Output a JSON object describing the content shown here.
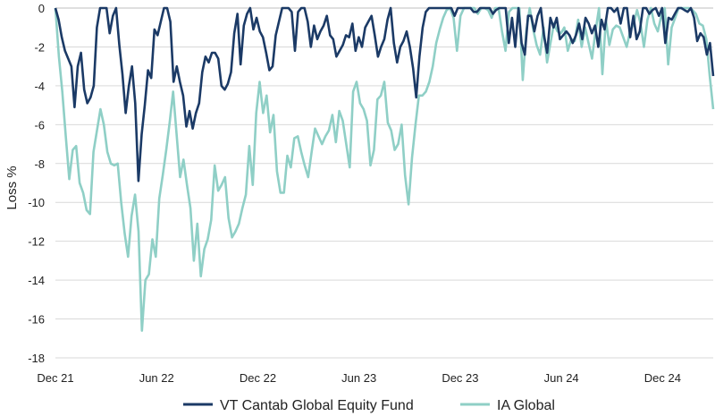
{
  "chart_data": {
    "type": "line",
    "title": "",
    "xlabel": "",
    "ylabel": "Loss %",
    "ylim": [
      -18,
      0
    ],
    "yticks": [
      "0",
      "-2",
      "-4",
      "-6",
      "-8",
      "-10",
      "-12",
      "-14",
      "-16",
      "-18"
    ],
    "xticks": [
      "Dec 21",
      "Jun 22",
      "Dec 22",
      "Jun 23",
      "Dec 23",
      "Jun 24",
      "Dec 24"
    ],
    "x_range": [
      "Dec 21",
      "Mar 25"
    ],
    "grid": "horizontal",
    "legend_position": "bottom",
    "series": [
      {
        "name": "VT Cantab Global Equity Fund",
        "color": "#1b3a66",
        "values": [
          0,
          -0.6,
          -1.5,
          -2.2,
          -2.6,
          -3.0,
          -5.1,
          -3.0,
          -2.3,
          -4.2,
          -4.9,
          -4.6,
          -4.0,
          -1.0,
          0,
          0,
          0,
          -1.3,
          -0.4,
          0,
          -1.9,
          -3.4,
          -5.4,
          -4.0,
          -3.0,
          -4.9,
          -8.9,
          -6.5,
          -5.0,
          -3.2,
          -3.6,
          -1.1,
          -1.4,
          -0.7,
          0,
          0,
          -0.7,
          -3.8,
          -3.0,
          -3.8,
          -4.5,
          -6.1,
          -5.3,
          -6.2,
          -5.4,
          -4.9,
          -3.3,
          -2.5,
          -2.8,
          -2.3,
          -2.3,
          -2.6,
          -4.0,
          -4.2,
          -3.9,
          -3.3,
          -1.3,
          -0.3,
          -2.9,
          -0.9,
          -0.3,
          0,
          -1.1,
          -0.5,
          -1.2,
          -1.5,
          -2.3,
          -3.2,
          -3.0,
          -1.4,
          -0.7,
          0,
          0,
          0,
          -0.2,
          -2.2,
          -0.2,
          0,
          0,
          -0.7,
          -2.0,
          -0.9,
          -1.6,
          -1.2,
          -0.9,
          -0.4,
          -1.4,
          -1.6,
          -2.5,
          -2.2,
          -1.9,
          -1.4,
          -1.5,
          -0.8,
          -2.2,
          -1.5,
          -2.0,
          -1.0,
          -0.7,
          -0.4,
          -1.4,
          -2.5,
          -2.0,
          -1.6,
          -0.6,
          0,
          -1.8,
          -2.8,
          -2.0,
          -1.7,
          -1.2,
          -2.0,
          -3.1,
          -4.6,
          -2.5,
          -1.0,
          -0.2,
          0,
          0,
          0,
          0,
          0,
          0,
          0,
          0,
          -0.4,
          0,
          0,
          0,
          0,
          0,
          -0.2,
          -0.2,
          0,
          0,
          0,
          0,
          -0.3,
          -0.1,
          0,
          0,
          0,
          -1.8,
          -0.5,
          -2.0,
          0,
          -1.8,
          -2.4,
          -0.4,
          -0.4,
          -1.2,
          -0.4,
          0,
          -1.4,
          -2.3,
          -0.5,
          -1.0,
          -0.5,
          -1.6,
          -1.4,
          -1.2,
          -1.4,
          -1.8,
          -1.4,
          -0.8,
          -1.6,
          -0.5,
          -0.8,
          -1.3,
          -0.9,
          -2.0,
          -0.6,
          -1.1,
          0,
          0,
          -0.2,
          0,
          -0.8,
          0,
          0,
          -1.5,
          -0.4,
          -1.6,
          -1.2,
          0,
          0,
          -0.3,
          -0.1,
          0,
          -0.4,
          0,
          -1.8,
          -0.5,
          -0.6,
          -0.3,
          0,
          0,
          -0.1,
          -0.2,
          0,
          -0.5,
          -1.7,
          -1.3,
          -1.5,
          -2.4,
          -1.8,
          -3.5
        ]
      },
      {
        "name": "IA Global",
        "color": "#8fcfc6",
        "values": [
          0,
          -2.5,
          -4.3,
          -6.6,
          -8.8,
          -7.3,
          -7.1,
          -9.0,
          -9.5,
          -10.4,
          -10.6,
          -7.4,
          -6.3,
          -5.2,
          -6.0,
          -7.4,
          -8.0,
          -8.1,
          -8.0,
          -10.0,
          -11.6,
          -12.8,
          -10.7,
          -9.6,
          -11.5,
          -16.6,
          -14.0,
          -13.7,
          -11.9,
          -12.8,
          -9.8,
          -8.6,
          -7.3,
          -5.9,
          -4.3,
          -6.5,
          -8.7,
          -7.8,
          -9.1,
          -10.3,
          -13.0,
          -11.1,
          -13.8,
          -12.4,
          -11.9,
          -10.9,
          -8.1,
          -9.4,
          -9.1,
          -8.7,
          -10.8,
          -11.8,
          -11.5,
          -11.1,
          -10.3,
          -9.6,
          -7.1,
          -9.1,
          -5.4,
          -3.8,
          -5.4,
          -4.5,
          -6.4,
          -5.5,
          -8.4,
          -9.5,
          -9.5,
          -7.6,
          -8.2,
          -6.7,
          -6.6,
          -7.4,
          -8.1,
          -8.7,
          -7.4,
          -6.2,
          -6.6,
          -7.0,
          -6.6,
          -6.3,
          -5.5,
          -6.9,
          -5.3,
          -5.8,
          -7.0,
          -8.2,
          -4.3,
          -3.8,
          -4.9,
          -5.2,
          -5.8,
          -8.1,
          -7.3,
          -4.7,
          -4.5,
          -3.8,
          -5.9,
          -6.3,
          -7.3,
          -7.0,
          -6.0,
          -8.6,
          -10.1,
          -7.7,
          -6.0,
          -4.5,
          -4.5,
          -4.3,
          -3.8,
          -3.0,
          -1.8,
          -1.1,
          -0.5,
          -0.1,
          0,
          -0.5,
          -2.2,
          -0.4,
          0,
          0,
          0,
          0,
          -0.3,
          0,
          0,
          -0.1,
          -0.5,
          0,
          0,
          -1.2,
          -2.2,
          -0.2,
          0,
          0,
          0,
          -3.7,
          -1.2,
          0,
          -1.1,
          -1.9,
          -2.4,
          -1.0,
          -2.8,
          -1.8,
          -0.8,
          -1.2,
          -1.3,
          -1.0,
          -2.2,
          -1.6,
          -1.7,
          -0.6,
          -2.0,
          -1.0,
          -1.8,
          -2.6,
          -1.2,
          0,
          -3.4,
          -0.6,
          -1.9,
          -1.1,
          -0.9,
          -1.0,
          -1.5,
          -2.0,
          -1.2,
          -0.8,
          -0.1,
          -0.8,
          -2.0,
          -0.6,
          0,
          -0.8,
          -1.2,
          -0.4,
          0,
          -2.9,
          -1.0,
          -0.5,
          0,
          0,
          0,
          0,
          -0.1,
          -0.3,
          -0.8,
          -0.9,
          -1.6,
          -3.5,
          -5.2
        ]
      }
    ]
  }
}
